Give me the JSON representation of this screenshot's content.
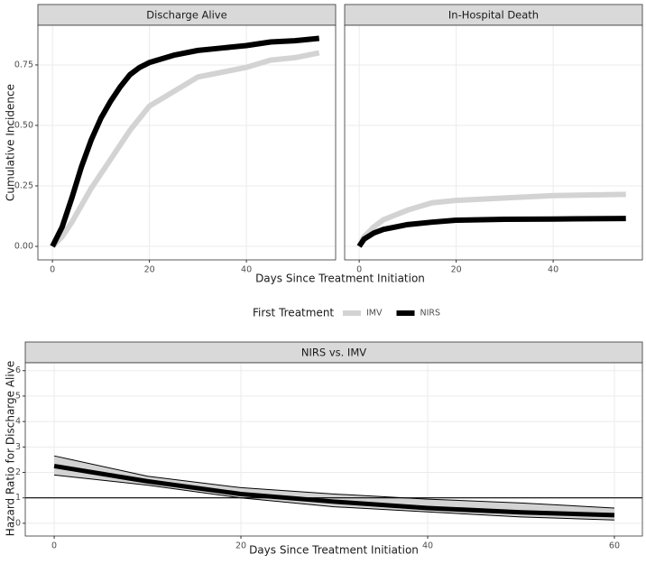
{
  "chart_data": [
    {
      "type": "line",
      "x_label": "Days Since Treatment Initiation",
      "y_label": "Cumulative Incidence",
      "xlim": [
        -3,
        58.4
      ],
      "ylim": [
        -0.056,
        0.914
      ],
      "xticks": [
        0,
        20,
        40
      ],
      "yticks": [
        {
          "value": 0,
          "label": "0.00"
        },
        {
          "value": 0.25,
          "label": "0.25"
        },
        {
          "value": 0.5,
          "label": "0.50"
        },
        {
          "value": 0.75,
          "label": "0.75"
        }
      ],
      "grid": true,
      "legend": {
        "title": "First Treatment",
        "position": "bottom"
      },
      "facets": [
        {
          "title": "Discharge Alive",
          "series": [
            {
              "name": "IMV",
              "color": "#d3d3d3",
              "x": [
                0,
                2,
                4,
                6,
                8,
                10,
                12,
                14,
                16,
                18,
                20,
                25,
                30,
                35,
                40,
                45,
                50,
                55
              ],
              "values": [
                0,
                0.04,
                0.1,
                0.17,
                0.24,
                0.3,
                0.36,
                0.42,
                0.48,
                0.53,
                0.58,
                0.64,
                0.7,
                0.72,
                0.74,
                0.77,
                0.78,
                0.8
              ]
            },
            {
              "name": "NIRS",
              "color": "#000000",
              "x": [
                0,
                2,
                4,
                6,
                8,
                10,
                12,
                14,
                16,
                18,
                20,
                25,
                30,
                35,
                40,
                45,
                50,
                55
              ],
              "values": [
                0,
                0.08,
                0.2,
                0.33,
                0.44,
                0.53,
                0.6,
                0.66,
                0.71,
                0.74,
                0.76,
                0.79,
                0.81,
                0.82,
                0.83,
                0.845,
                0.85,
                0.86
              ]
            }
          ]
        },
        {
          "title": "In-Hospital Death",
          "series": [
            {
              "name": "IMV",
              "color": "#d3d3d3",
              "x": [
                0,
                1,
                3,
                5,
                10,
                15,
                20,
                30,
                40,
                55
              ],
              "values": [
                0,
                0.04,
                0.08,
                0.11,
                0.15,
                0.18,
                0.19,
                0.2,
                0.21,
                0.215
              ]
            },
            {
              "name": "NIRS",
              "color": "#000000",
              "x": [
                0,
                1,
                3,
                5,
                10,
                15,
                20,
                30,
                40,
                55
              ],
              "values": [
                0,
                0.03,
                0.055,
                0.07,
                0.09,
                0.1,
                0.108,
                0.112,
                0.113,
                0.115
              ]
            }
          ]
        }
      ]
    },
    {
      "type": "ribbon",
      "title": "NIRS vs. IMV",
      "x_label": "Days Since Treatment Initiation",
      "y_label": "Hazard Ratio for Discharge Alive",
      "xlim": [
        -3.1,
        63
      ],
      "ylim": [
        -0.5,
        6.31
      ],
      "xticks": [
        0,
        20,
        40,
        60
      ],
      "yticks": [
        0,
        1,
        2,
        3,
        4,
        5,
        6
      ],
      "grid": true,
      "hline": 1,
      "color": "#000000",
      "band_color": "#d3d3d3",
      "x": [
        0,
        10,
        20,
        30,
        40,
        50,
        60
      ],
      "values": [
        2.25,
        1.65,
        1.15,
        0.85,
        0.6,
        0.43,
        0.32
      ],
      "lower": [
        1.9,
        1.5,
        1.0,
        0.65,
        0.45,
        0.25,
        0.13
      ],
      "upper": [
        2.65,
        1.85,
        1.4,
        1.15,
        0.95,
        0.8,
        0.6
      ]
    }
  ]
}
